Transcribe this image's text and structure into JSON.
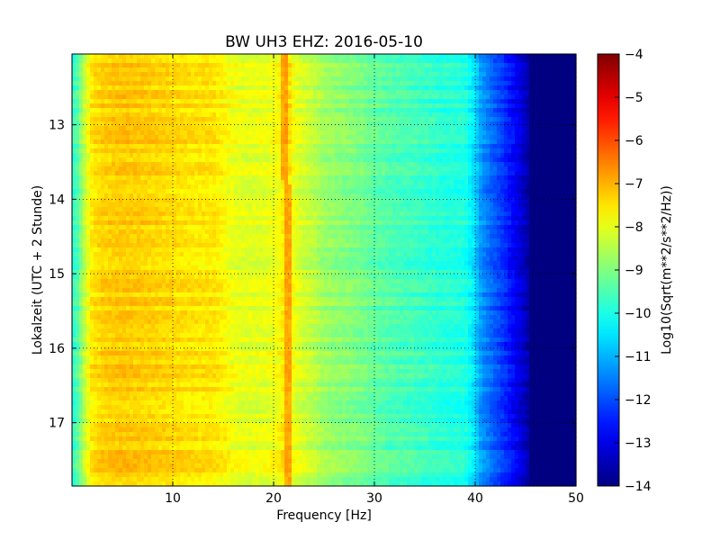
{
  "chart_data": {
    "type": "heatmap",
    "title": "BW UH3 EHZ: 2016-05-10",
    "xlabel": "Frequency [Hz]",
    "ylabel": "Lokalzeit (UTC + 2 Stunde)",
    "xlim": [
      0,
      50
    ],
    "ylim": [
      12.05,
      17.85
    ],
    "y_inverted": true,
    "x_ticks": [
      10,
      20,
      30,
      40,
      50
    ],
    "y_ticks": [
      13,
      14,
      15,
      16,
      17
    ],
    "grid": true,
    "colormap": "jet",
    "colorbar": {
      "label": "Log10(Sqrt(m**2/s**2/Hz))",
      "range": [
        -14,
        -4
      ],
      "ticks": [
        -4,
        -5,
        -6,
        -7,
        -8,
        -9,
        -10,
        -11,
        -12,
        -13,
        -14
      ]
    },
    "spectrum_profile": {
      "frequency_hz": [
        0,
        0.5,
        1,
        1.5,
        2,
        3,
        5,
        8,
        10,
        12,
        14,
        15,
        16,
        17,
        18,
        19,
        20,
        20.8,
        21.3,
        21.8,
        22.5,
        24,
        25,
        27,
        29,
        30,
        32,
        34,
        35,
        37,
        39,
        40,
        40.5,
        41.5,
        42.5,
        43.5,
        44.5,
        45.3,
        46,
        50
      ],
      "log10_amplitude": [
        -9.8,
        -9.5,
        -8.7,
        -8.0,
        -7.5,
        -7.3,
        -7.2,
        -7.3,
        -7.4,
        -7.5,
        -7.5,
        -7.7,
        -7.9,
        -8.0,
        -8.0,
        -8.0,
        -7.9,
        -7.7,
        -6.9,
        -7.8,
        -8.1,
        -8.4,
        -8.7,
        -8.9,
        -9.1,
        -9.3,
        -9.5,
        -9.6,
        -9.7,
        -9.85,
        -9.95,
        -10.6,
        -11.2,
        -11.7,
        -12.1,
        -12.6,
        -13.1,
        -13.6,
        -14.0,
        -14.0
      ]
    },
    "annotations": {
      "narrow_peak_frequency_hz": [
        21.0,
        21.1,
        21.3,
        21.5,
        21.6,
        21.4
      ],
      "narrow_peak_time": [
        12.05,
        13.0,
        14.0,
        15.0,
        16.0,
        17.85
      ]
    }
  }
}
